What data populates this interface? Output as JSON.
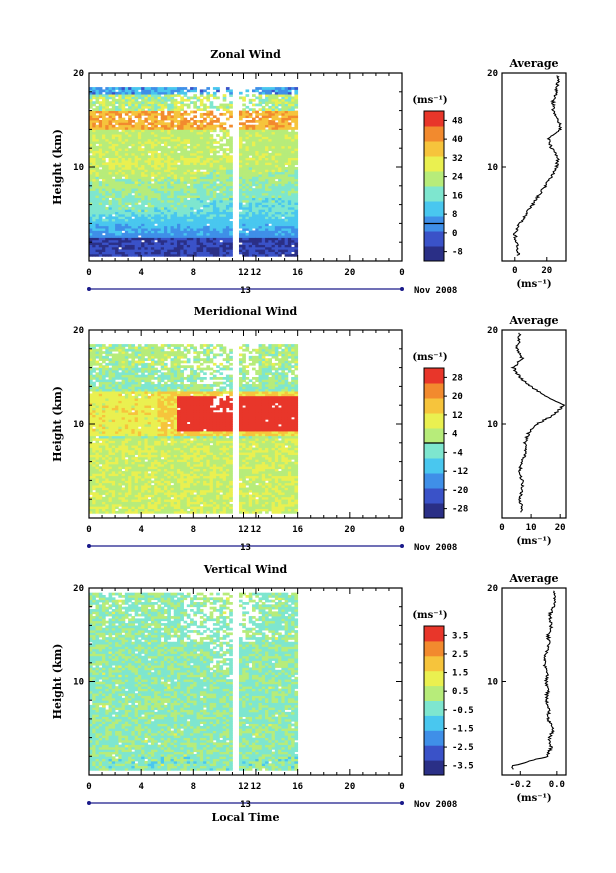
{
  "chart_data": [
    {
      "type": "heatmap",
      "title": "Zonal Wind",
      "ylabel": "Height (km)",
      "xlabel": "",
      "x_ticks": [
        "0",
        "4",
        "8",
        "12",
        "12",
        "16",
        "20",
        "0"
      ],
      "y_ticks": [
        "20",
        "10"
      ],
      "date_labels": [
        "13",
        "Nov 2008"
      ],
      "colorbar_unit": "(ms⁻¹)",
      "colorbar_ticks": [
        "48",
        "40",
        "32",
        "24",
        "16",
        "8",
        "0",
        "-8"
      ],
      "colorbar_range": [
        -8,
        52
      ],
      "ylim": [
        0,
        20
      ],
      "profile": {
        "title": "Average",
        "xlabel": "(ms⁻¹)",
        "x_ticks": [
          "0",
          "20"
        ],
        "y_ticks": [
          "20",
          "10"
        ],
        "xlim": [
          -8,
          32
        ],
        "heights": [
          1,
          2,
          3,
          4,
          5,
          6,
          7,
          8,
          9,
          10,
          11,
          12,
          13,
          14,
          15,
          16,
          17,
          18,
          19
        ],
        "values": [
          2,
          1,
          0,
          3,
          7,
          11,
          15,
          19,
          23,
          26,
          27,
          23,
          21,
          29,
          27,
          24,
          24,
          26,
          27
        ]
      }
    },
    {
      "type": "heatmap",
      "title": "Meridional Wind",
      "ylabel": "Height (km)",
      "xlabel": "",
      "x_ticks": [
        "0",
        "4",
        "8",
        "12",
        "12",
        "16",
        "20",
        "0"
      ],
      "y_ticks": [
        "20",
        "10"
      ],
      "date_labels": [
        "13",
        "Nov 2008"
      ],
      "colorbar_unit": "(ms⁻¹)",
      "colorbar_ticks": [
        "28",
        "20",
        "12",
        "4",
        "-4",
        "-12",
        "-20",
        "-28"
      ],
      "colorbar_range": [
        -32,
        32
      ],
      "ylim": [
        0,
        20
      ],
      "profile": {
        "title": "Average",
        "xlabel": "(ms⁻¹)",
        "x_ticks": [
          "0",
          "10",
          "20"
        ],
        "y_ticks": [
          "20",
          "10"
        ],
        "xlim": [
          0,
          22
        ],
        "heights": [
          1,
          2,
          3,
          4,
          5,
          6,
          7,
          8,
          9,
          10,
          11,
          12,
          13,
          14,
          15,
          16,
          17,
          18,
          19
        ],
        "values": [
          7,
          6,
          7,
          7,
          6,
          7,
          8,
          8,
          9,
          12,
          18,
          21,
          15,
          10,
          6,
          4,
          7,
          5,
          6
        ]
      }
    },
    {
      "type": "heatmap",
      "title": "Vertical Wind",
      "ylabel": "Height (km)",
      "xlabel": "Local Time",
      "x_ticks": [
        "0",
        "4",
        "8",
        "12",
        "12",
        "16",
        "20",
        "0"
      ],
      "y_ticks": [
        "20",
        "10"
      ],
      "date_labels": [
        "13",
        "Nov 2008"
      ],
      "colorbar_unit": "(ms⁻¹)",
      "colorbar_ticks": [
        "3.5",
        "2.5",
        "1.5",
        "0.5",
        "-0.5",
        "-1.5",
        "-2.5",
        "-3.5"
      ],
      "colorbar_range": [
        -4,
        4
      ],
      "ylim": [
        0,
        20
      ],
      "profile": {
        "title": "Average",
        "xlabel": "(ms⁻¹)",
        "x_ticks": [
          "-0.2",
          "0.0"
        ],
        "y_ticks": [
          "20",
          "10"
        ],
        "xlim": [
          -0.3,
          0.05
        ],
        "heights": [
          1,
          2,
          3,
          4,
          5,
          6,
          7,
          8,
          9,
          10,
          11,
          12,
          13,
          14,
          15,
          16,
          17,
          18,
          19
        ],
        "values": [
          -0.24,
          -0.05,
          -0.03,
          -0.04,
          -0.02,
          -0.05,
          -0.04,
          -0.06,
          -0.05,
          -0.06,
          -0.05,
          -0.07,
          -0.06,
          -0.04,
          -0.05,
          -0.03,
          -0.04,
          -0.02,
          -0.01
        ]
      }
    }
  ],
  "colors": {
    "colormap": [
      "#2a2f86",
      "#3a52c8",
      "#3f8fe8",
      "#49c7ef",
      "#7ee6cf",
      "#b7ec7a",
      "#eaf050",
      "#f6c43c",
      "#f28a2e",
      "#e8362a"
    ]
  }
}
